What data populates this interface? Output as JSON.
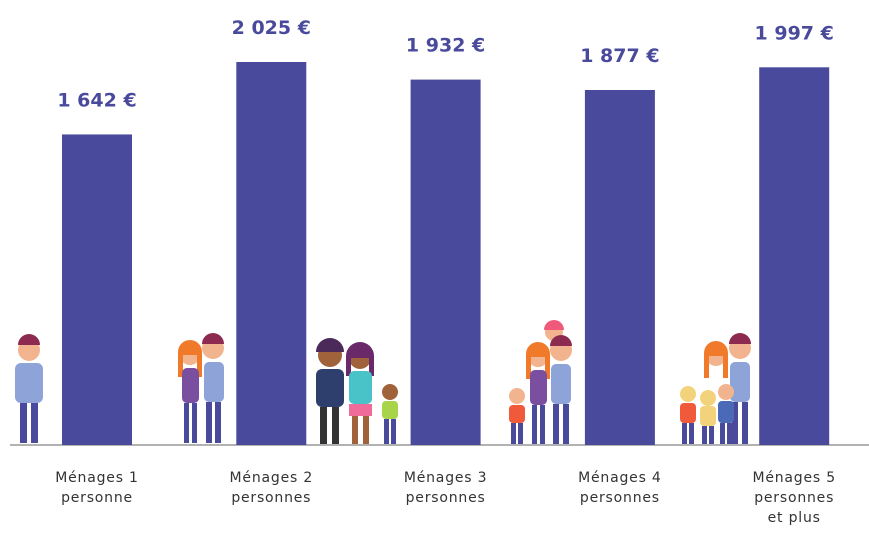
{
  "chart_data": {
    "type": "bar",
    "categories": [
      "Ménages 1 personne",
      "Ménages 2 personnes",
      "Ménages 3 personnes",
      "Ménages 4 personnes",
      "Ménages 5 personnes et plus"
    ],
    "values": [
      1642,
      2025,
      1932,
      1877,
      1997
    ],
    "value_labels": [
      "1 642 €",
      "2 025 €",
      "1 932 €",
      "1 877 €",
      "1 997 €"
    ],
    "color": "#4a4a9c"
  }
}
